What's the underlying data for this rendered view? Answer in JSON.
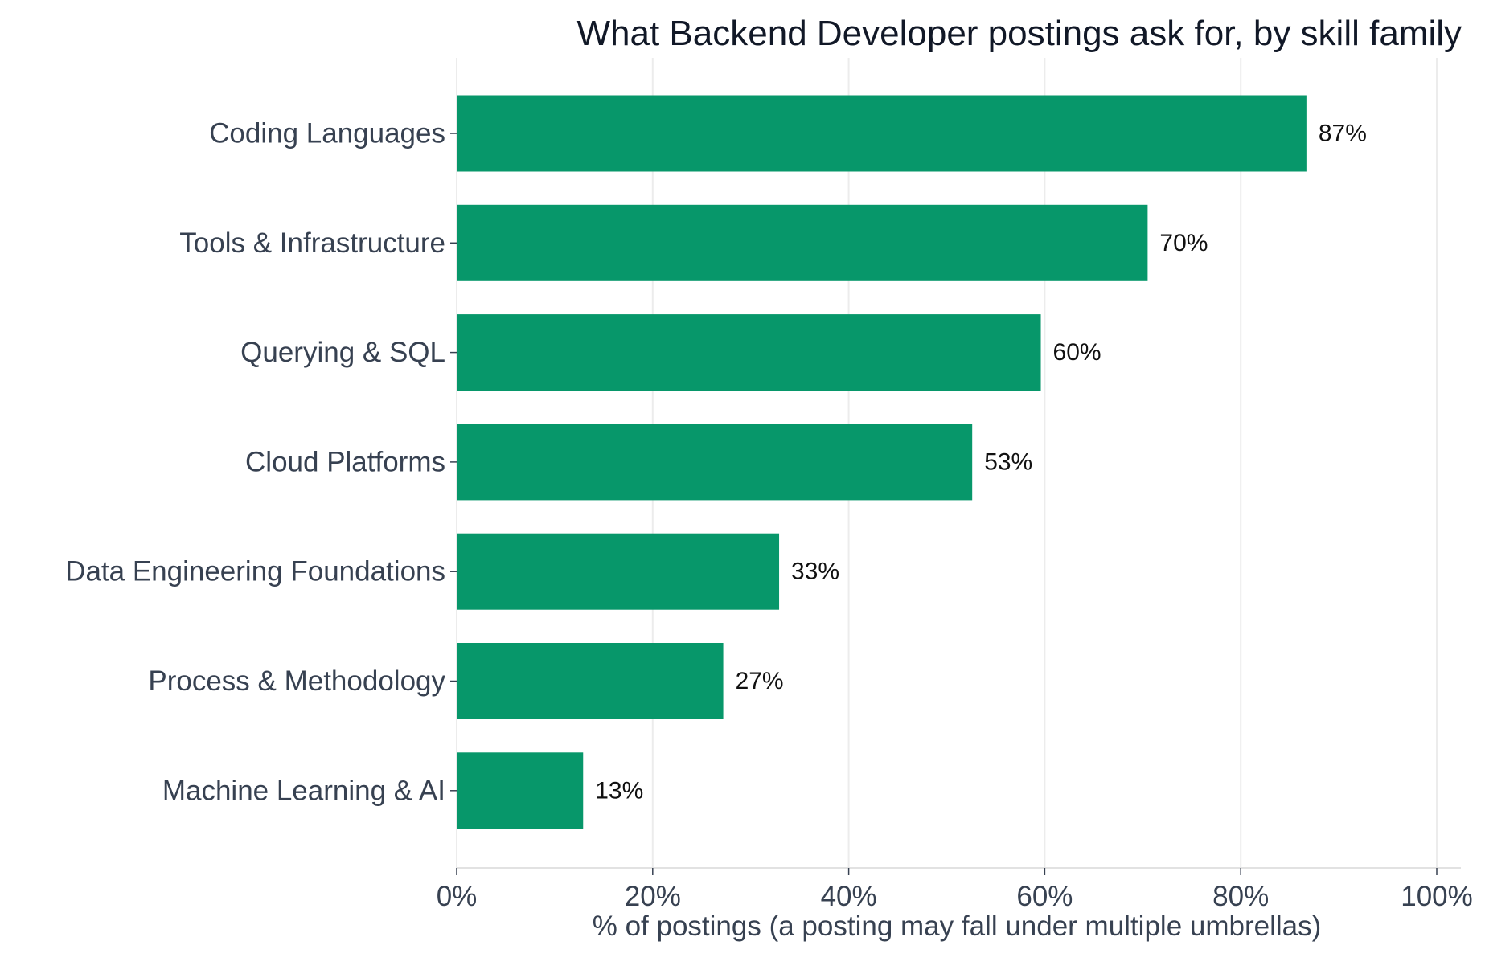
{
  "chart_data": {
    "type": "bar",
    "orientation": "horizontal",
    "title": "What Backend Developer postings ask for, by skill family",
    "xlabel": "% of postings (a posting may fall under multiple umbrellas)",
    "ylabel": "",
    "xlim": [
      0,
      100
    ],
    "x_ticks": [
      "0%",
      "20%",
      "40%",
      "60%",
      "80%",
      "100%"
    ],
    "x_tick_values": [
      0,
      20,
      40,
      60,
      80,
      100
    ],
    "grid": "vertical",
    "bar_color": "#07976a",
    "categories": [
      "Coding Languages",
      "Tools & Infrastructure",
      "Querying & SQL",
      "Cloud Platforms",
      "Data Engineering Foundations",
      "Process & Methodology",
      "Machine Learning & AI"
    ],
    "values": [
      86.7,
      70.5,
      59.6,
      52.6,
      32.9,
      27.2,
      12.9
    ],
    "value_labels": [
      "87%",
      "70%",
      "60%",
      "53%",
      "33%",
      "27%",
      "13%"
    ]
  }
}
